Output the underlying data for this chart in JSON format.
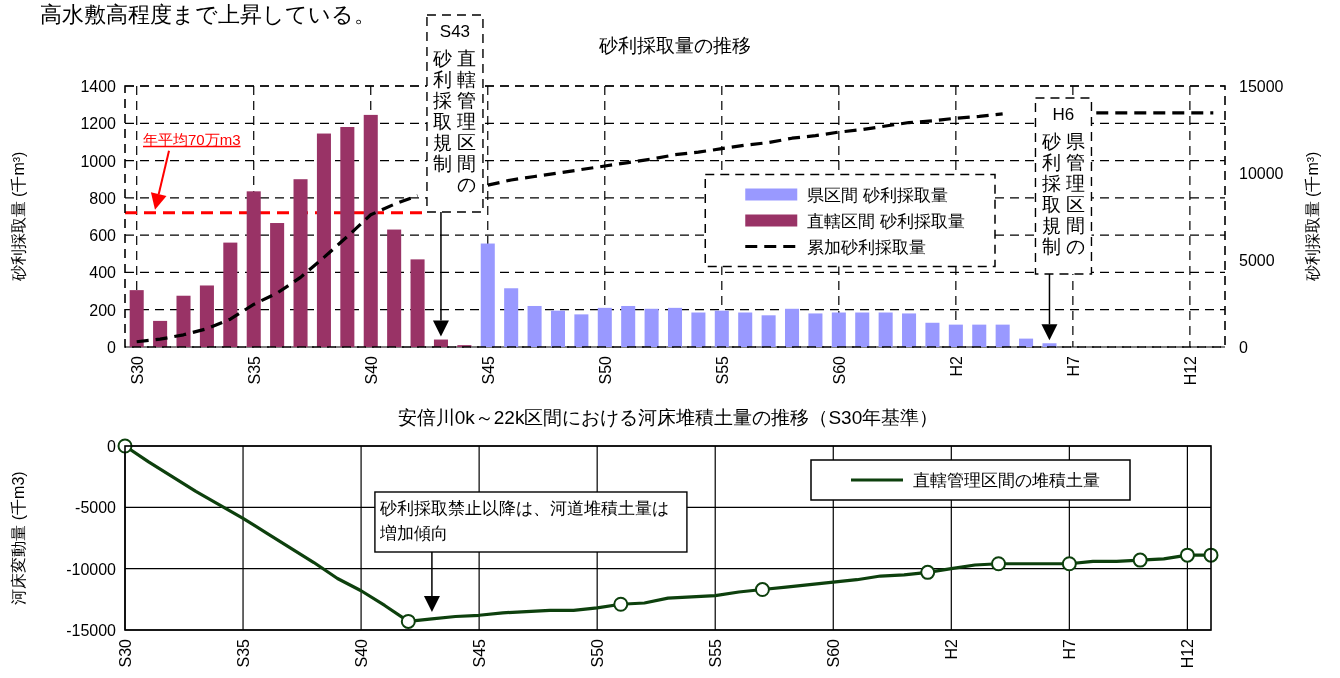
{
  "chart_data": [
    {
      "type": "bar",
      "title": "砂利採取量の推移",
      "ylabel": "砂利採取量 (千m³)",
      "y2label": "砂利採取量 (千m³)",
      "categories": [
        "S30",
        null,
        null,
        null,
        null,
        "S35",
        null,
        null,
        null,
        null,
        "S40",
        null,
        null,
        null,
        null,
        "S45",
        null,
        null,
        null,
        null,
        "S50",
        null,
        null,
        null,
        null,
        "S55",
        null,
        null,
        null,
        null,
        "S60",
        null,
        null,
        null,
        null,
        "H2",
        null,
        null,
        null,
        null,
        "H7",
        null,
        null,
        null,
        null,
        "H12",
        null
      ],
      "stacked": true,
      "series": [
        {
          "name": "県区間 砂利採取量",
          "color": "#9999ff",
          "values": [
            null,
            null,
            null,
            null,
            null,
            null,
            null,
            null,
            null,
            null,
            null,
            null,
            null,
            null,
            null,
            555,
            315,
            220,
            195,
            175,
            210,
            220,
            205,
            210,
            185,
            195,
            185,
            170,
            205,
            180,
            185,
            185,
            185,
            180,
            130,
            120,
            120,
            120,
            45,
            20,
            null,
            null,
            null,
            null,
            null,
            null,
            null
          ]
        },
        {
          "name": "直轄区間 砂利採取量",
          "color": "#993366",
          "values": [
            305,
            140,
            275,
            330,
            560,
            835,
            665,
            900,
            1145,
            1180,
            1245,
            630,
            470,
            40,
            10,
            null,
            null,
            null,
            null,
            null,
            null,
            null,
            null,
            null,
            null,
            null,
            null,
            null,
            null,
            null,
            null,
            null,
            null,
            null,
            null,
            null,
            null,
            null,
            null,
            null,
            null,
            null,
            null,
            null,
            null,
            null,
            null
          ]
        },
        {
          "name": "累加砂利採取量",
          "type": "line",
          "axis": "y2",
          "color": "#000000",
          "line_style": "dashed",
          "values": [
            300,
            450,
            700,
            1050,
            1600,
            2450,
            3100,
            4000,
            5150,
            6350,
            7600,
            8200,
            8700,
            null,
            null,
            9300,
            9600,
            9800,
            10000,
            10200,
            10400,
            10600,
            10800,
            11050,
            11200,
            11400,
            11600,
            11750,
            12000,
            12150,
            12350,
            12500,
            12700,
            12900,
            13000,
            13150,
            13250,
            13400,
            null,
            null,
            null,
            13450,
            13450,
            13450,
            13450,
            13450,
            13450
          ]
        }
      ],
      "ylim": [
        0,
        1400
      ],
      "yticks": [
        0,
        200,
        400,
        600,
        800,
        1000,
        1200,
        1400
      ],
      "y2lim": [
        0,
        15000
      ],
      "y2ticks": [
        0,
        5000,
        10000,
        15000
      ],
      "grid": true,
      "legend": "center right",
      "ref_lines": [
        {
          "axis": "y",
          "value": 720,
          "label": "年平均70万m3",
          "color": "#ff0000",
          "line_style": "dashed"
        }
      ],
      "annotations": [
        "高水敷高程度まで上昇している。",
        "S43",
        "直轄管理区間の",
        "砂利採取規制",
        "H6",
        "県管理区間の",
        "砂利採取規制"
      ]
    },
    {
      "type": "line",
      "title": "安倍川0k～22k区間における河床堆積土量の推移（S30年基準）",
      "ylabel": "河床変動量 (千m3)",
      "categories": [
        "S30",
        null,
        null,
        null,
        null,
        "S35",
        null,
        null,
        null,
        null,
        "S40",
        null,
        null,
        null,
        null,
        "S45",
        null,
        null,
        null,
        null,
        "S50",
        null,
        null,
        null,
        null,
        "S55",
        null,
        null,
        null,
        null,
        "S60",
        null,
        null,
        null,
        null,
        "H2",
        null,
        null,
        null,
        null,
        "H7",
        null,
        null,
        null,
        null,
        "H12",
        null
      ],
      "series": [
        {
          "name": "直轄管理区間の堆積土量",
          "color": "#0d400d",
          "values": [
            0,
            -1300,
            -2500,
            -3700,
            -4800,
            -5900,
            -7100,
            -8300,
            -9500,
            -10800,
            -11800,
            -13000,
            -14300,
            -14100,
            -13900,
            -13800,
            -13600,
            -13500,
            -13400,
            -13400,
            -13200,
            -12900,
            -12800,
            -12400,
            -12300,
            -12200,
            -11900,
            -11700,
            -11500,
            -11300,
            -11100,
            -10900,
            -10600,
            -10500,
            -10300,
            -10000,
            -9700,
            -9600,
            -9600,
            -9600,
            -9600,
            -9400,
            -9400,
            -9300,
            -9200,
            -8900,
            -8900
          ]
        },
        {
          "type": "scatter",
          "color": "#0d400d",
          "marker": "circle",
          "values": [
            0,
            null,
            null,
            null,
            null,
            null,
            null,
            null,
            null,
            null,
            null,
            null,
            -14300,
            null,
            null,
            null,
            null,
            null,
            null,
            null,
            null,
            -12900,
            null,
            null,
            null,
            null,
            null,
            -11700,
            null,
            null,
            null,
            null,
            null,
            null,
            -10300,
            null,
            null,
            -9600,
            null,
            null,
            -9600,
            null,
            null,
            -9300,
            null,
            -8900,
            -8900
          ]
        }
      ],
      "ylim": [
        -15000,
        0
      ],
      "yticks": [
        -15000,
        -10000,
        -5000,
        0
      ],
      "grid": true,
      "legend": "top right",
      "annotations": [
        "砂利採取禁止以降は、河道堆積土量は増加傾向"
      ]
    }
  ]
}
